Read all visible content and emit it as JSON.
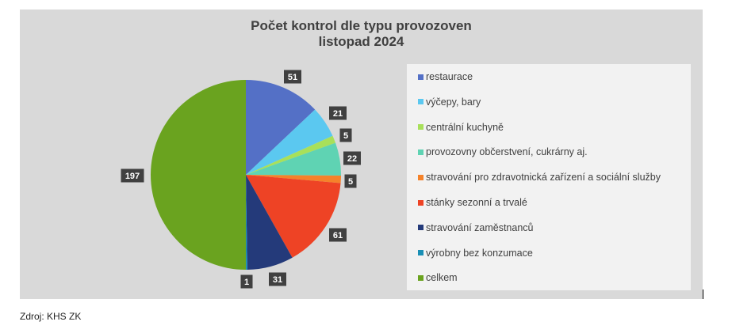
{
  "chart_data": {
    "type": "pie",
    "title": [
      "Počet kontrol dle typu provozoven",
      "listopad 2024"
    ],
    "categories": [
      "restaurace",
      "výčepy, bary",
      "centrální kuchyně",
      "provozovny občerstvení, cukrárny aj.",
      "stravování pro zdravotnická zařízení a sociální služby",
      "stánky sezonní a trvalé",
      "stravování zaměstnanců",
      "výrobny bez konzumace",
      "celkem"
    ],
    "values": [
      51,
      21,
      5,
      22,
      5,
      61,
      31,
      1,
      197
    ],
    "colors": [
      "#5470c6",
      "#5bc8f0",
      "#a8e05a",
      "#5fd3b3",
      "#f5822a",
      "#ee4325",
      "#243a7a",
      "#1a8fb5",
      "#6aa31f"
    ],
    "legend_position": "right",
    "data_labels": true
  },
  "footer": {
    "source": "Zdroj: KHS ZK"
  }
}
